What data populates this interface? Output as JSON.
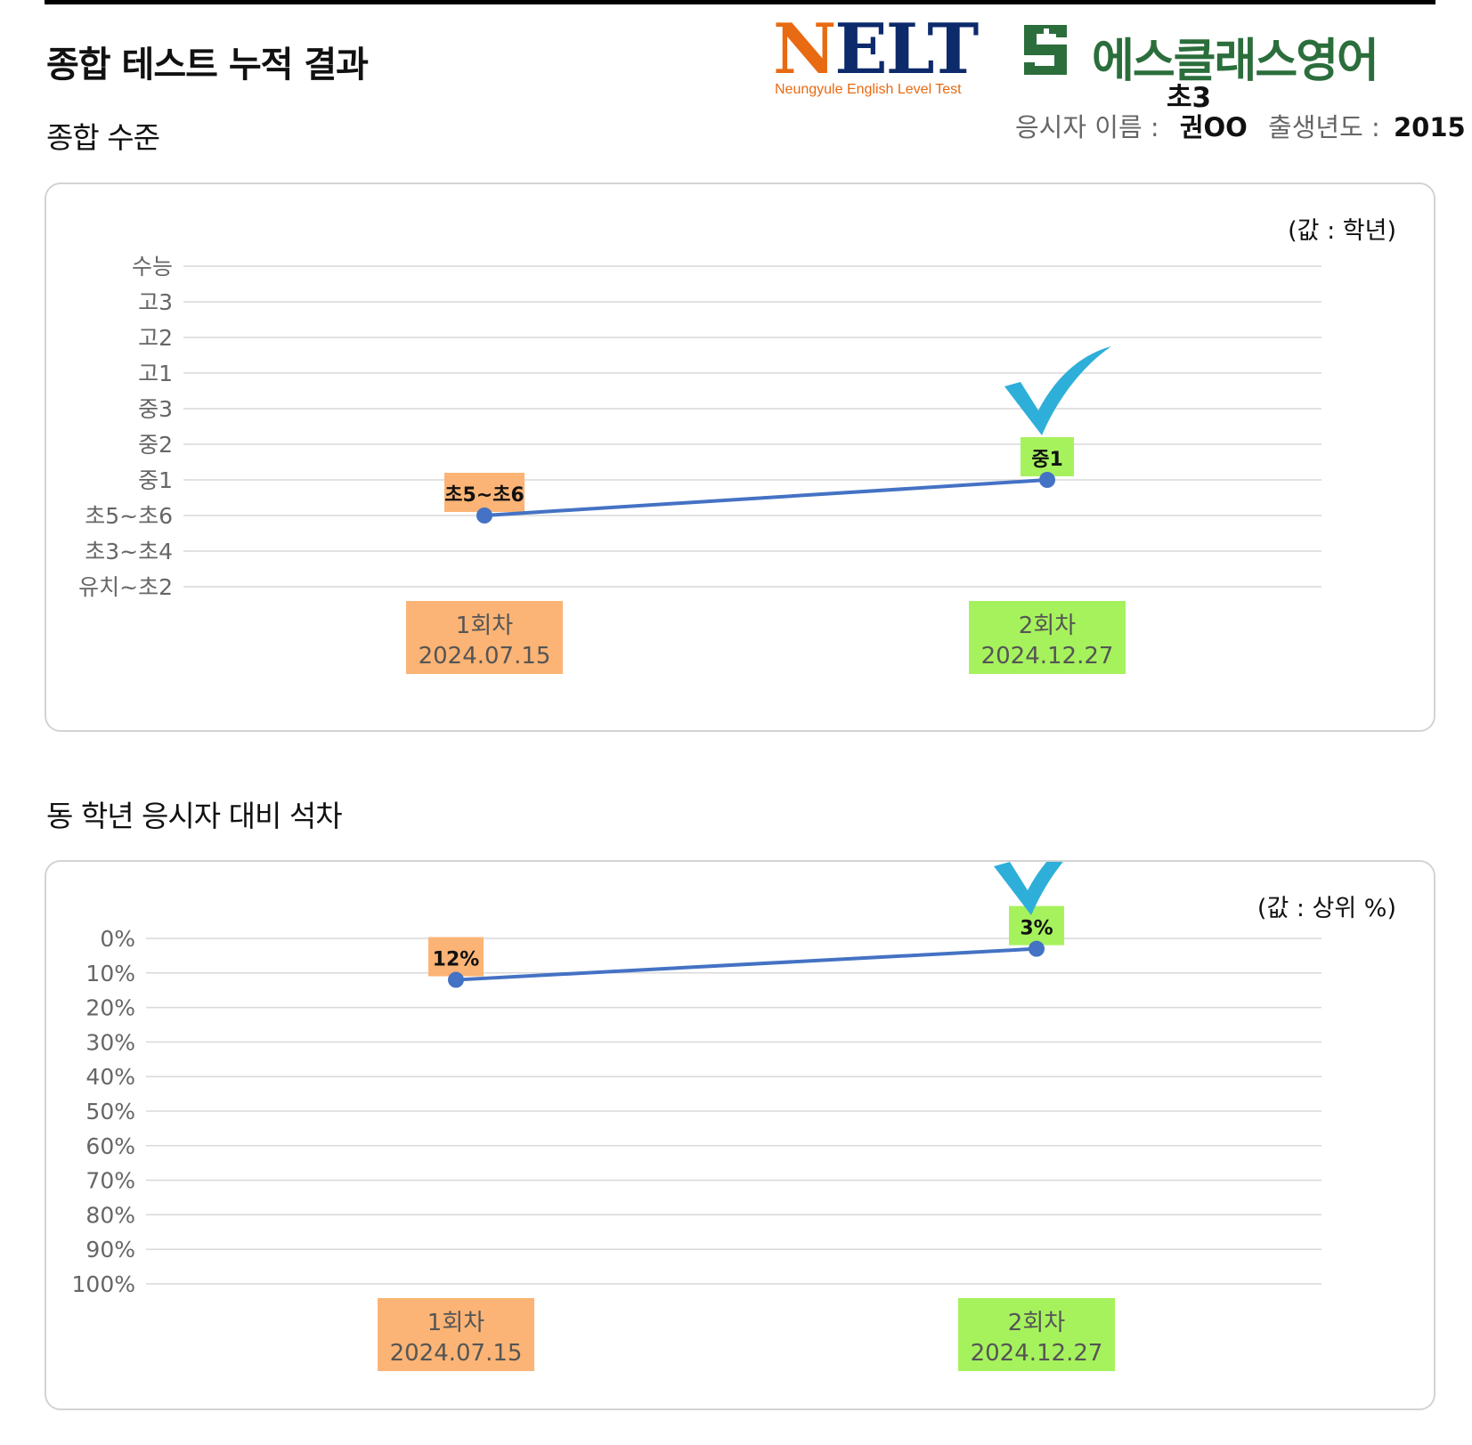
{
  "header": {
    "title": "종합 테스트 누적 결과",
    "nelt_logo": {
      "word": "NELT",
      "subtitle": "Neungyule English Level Test"
    },
    "academy_logo": {
      "name": "에스클래스영어"
    },
    "grade": "초3",
    "student": {
      "name_label": "응시자 이름 :",
      "name": "권OO",
      "birth_label": "출생년도 :",
      "birth_year": "2015"
    }
  },
  "colors": {
    "line": "#4472c4",
    "round1_fill": "#fbb475",
    "round2_fill": "#a6f25d",
    "check": "#2eafd9",
    "grid": "#d9d9d9",
    "axis_text": "#666666",
    "academy_green": "#2b6e3c"
  },
  "sections": {
    "level": {
      "title": "종합 수준",
      "unit": "(값 : 학년)"
    },
    "rank": {
      "title": "동 학년 응시자 대비 석차",
      "unit": "(값 : 상위 %)"
    }
  },
  "chart_data": [
    {
      "type": "line",
      "title": "종합 수준",
      "y_categories": [
        "유치~초2",
        "초3~초4",
        "초5~초6",
        "중1",
        "중2",
        "중3",
        "고1",
        "고2",
        "고3",
        "수능"
      ],
      "x": [
        {
          "round": "1회차",
          "date": "2024.07.15"
        },
        {
          "round": "2회차",
          "date": "2024.12.27"
        }
      ],
      "values": [
        "초5~초6",
        "중1"
      ],
      "data_labels": [
        "초5~초6",
        "중1"
      ],
      "unit": "(값 : 학년)",
      "grid": true,
      "highlight": "checkmark above last point"
    },
    {
      "type": "line",
      "title": "동 학년 응시자 대비 석차",
      "y_ticks": [
        "0%",
        "10%",
        "20%",
        "30%",
        "40%",
        "50%",
        "60%",
        "70%",
        "80%",
        "90%",
        "100%"
      ],
      "y_inverted": true,
      "ylim": [
        0,
        100
      ],
      "x": [
        {
          "round": "1회차",
          "date": "2024.07.15"
        },
        {
          "round": "2회차",
          "date": "2024.12.27"
        }
      ],
      "values": [
        12,
        3
      ],
      "data_labels": [
        "12%",
        "3%"
      ],
      "unit": "(값 : 상위 %)",
      "grid": true,
      "highlight": "checkmark above last point"
    }
  ]
}
